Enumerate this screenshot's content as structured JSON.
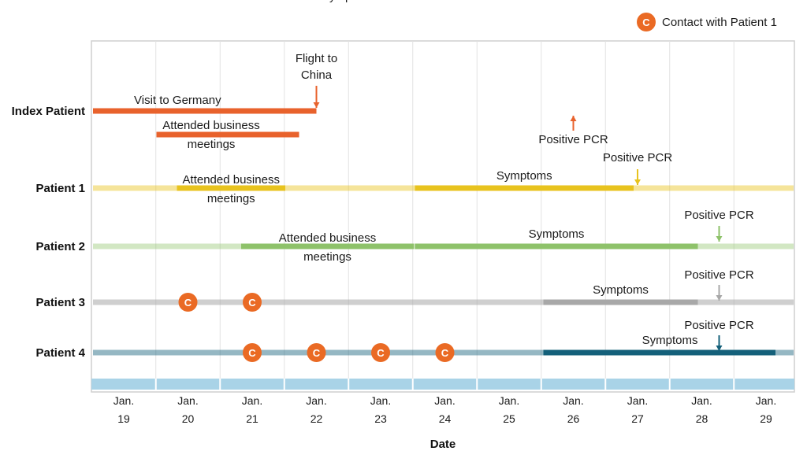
{
  "chart_data": {
    "type": "timeline",
    "xlabel": "Date",
    "x_ticks": [
      {
        "month": "Jan.",
        "day": "19"
      },
      {
        "month": "Jan.",
        "day": "20"
      },
      {
        "month": "Jan.",
        "day": "21"
      },
      {
        "month": "Jan.",
        "day": "22"
      },
      {
        "month": "Jan.",
        "day": "23"
      },
      {
        "month": "Jan.",
        "day": "24"
      },
      {
        "month": "Jan.",
        "day": "25"
      },
      {
        "month": "Jan.",
        "day": "26"
      },
      {
        "month": "Jan.",
        "day": "27"
      },
      {
        "month": "Jan.",
        "day": "28"
      },
      {
        "month": "Jan.",
        "day": "29"
      }
    ],
    "x_range": [
      "Jan. 19",
      "Jan. 29"
    ],
    "legend": {
      "symbol": "C",
      "label": "Contact with Patient 1",
      "placement": "top-right"
    },
    "rows": [
      {
        "name": "Index Patient",
        "color": "#e8622c",
        "periods": [
          {
            "label": "Visit to Germany",
            "start": "Jan. 19",
            "end": "Jan. 22"
          },
          {
            "label_lines": [
              "Attended business",
              "meetings"
            ],
            "start": "Jan. 20",
            "end": "Jan. 22"
          },
          {
            "label": "Symptoms",
            "start": "Jan. 22",
            "end": "Jan. 29"
          }
        ],
        "events": [
          {
            "label_lines": [
              "Flight to",
              "China"
            ],
            "date": "Jan. 22"
          },
          {
            "label": "Positive PCR",
            "date": "Jan. 26"
          }
        ],
        "contacts": []
      },
      {
        "name": "Patient 1",
        "color": "#e8c31e",
        "periods": [
          {
            "label_lines": [
              "Attended business",
              "meetings"
            ],
            "start": "Jan. 20",
            "end": "Jan. 21"
          },
          {
            "label": "Symptoms",
            "start": "Jan. 24",
            "end": "Jan. 27"
          }
        ],
        "events": [
          {
            "label": "Positive PCR",
            "date": "Jan. 27"
          }
        ],
        "contacts": []
      },
      {
        "name": "Patient 2",
        "color": "#8ec26a",
        "periods": [
          {
            "label_lines": [
              "Attended business",
              "meetings"
            ],
            "start": "Jan. 21",
            "end": "Jan. 23"
          },
          {
            "label": "Symptoms",
            "start": "Jan. 24",
            "end": "Jan. 28"
          }
        ],
        "events": [
          {
            "label": "Positive PCR",
            "date": "Jan. 28"
          }
        ],
        "contacts": []
      },
      {
        "name": "Patient 3",
        "color": "#a8a8a8",
        "periods": [
          {
            "label": "Symptoms",
            "start": "Jan. 26",
            "end": "Jan. 28"
          }
        ],
        "events": [
          {
            "label": "Positive PCR",
            "date": "Jan. 28"
          }
        ],
        "contacts": [
          "Jan. 20",
          "Jan. 21"
        ]
      },
      {
        "name": "Patient 4",
        "color": "#14607a",
        "periods": [
          {
            "label": "Symptoms",
            "start": "Jan. 26",
            "end": "Jan. 29"
          }
        ],
        "events": [
          {
            "label": "Positive PCR",
            "date": "Jan. 28"
          }
        ],
        "contacts": [
          "Jan. 21",
          "Jan. 22",
          "Jan. 23",
          "Jan. 24"
        ]
      }
    ],
    "colors": {
      "contact": "#ea6a24",
      "axis_band": "#a9d3e7",
      "frame": "#cfcfcf",
      "grid": "#e2e2e2"
    }
  }
}
